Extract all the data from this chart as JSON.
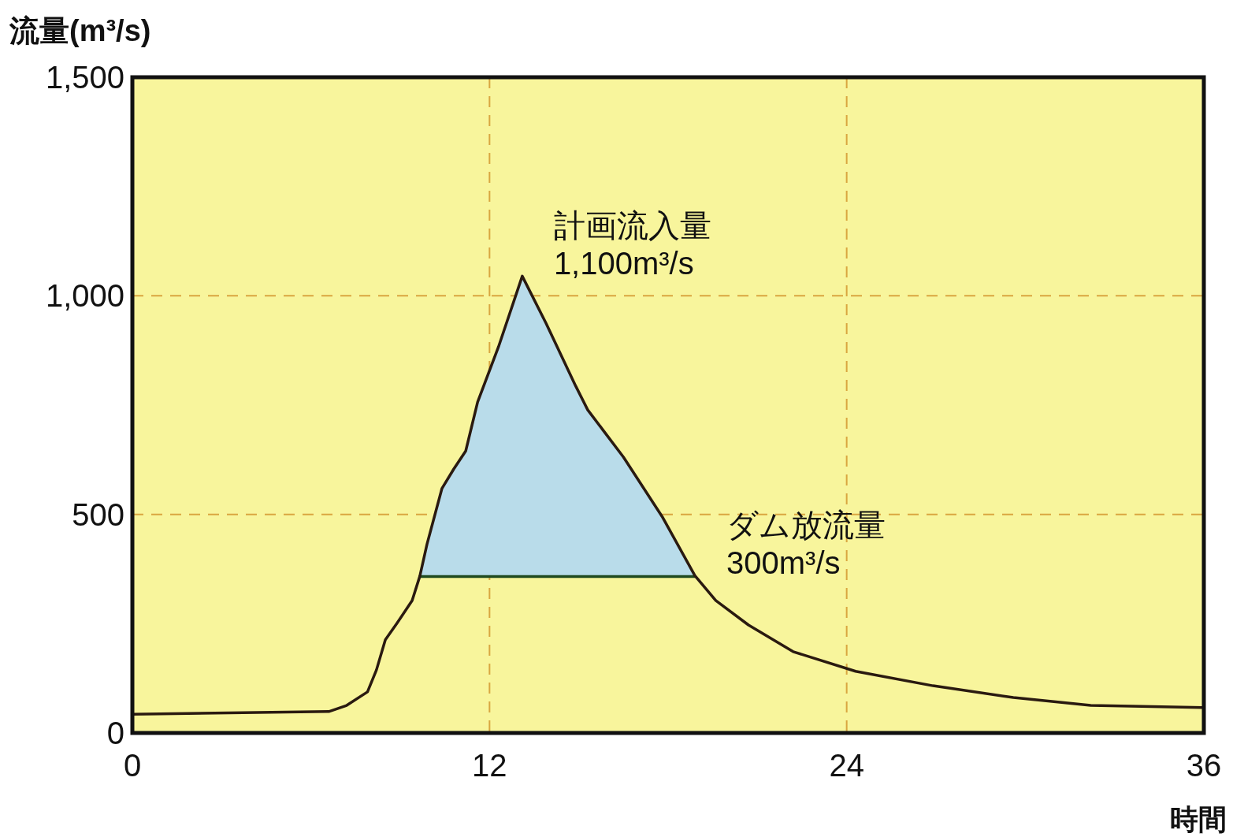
{
  "chart_data": {
    "type": "line",
    "xlabel": "時間",
    "ylabel": "流量(m³/s)",
    "xlim": [
      0,
      36
    ],
    "ylim": [
      0,
      1500
    ],
    "xticks": [
      0,
      12,
      24,
      36
    ],
    "yticks": [
      {
        "value": 0,
        "label": "0"
      },
      {
        "value": 500,
        "label": "500"
      },
      {
        "value": 1000,
        "label": "1,000"
      },
      {
        "value": 1500,
        "label": "1,500"
      }
    ],
    "grid": true,
    "series": [
      {
        "type": "area",
        "color": "#b9dcea",
        "x": [
          9.66,
          9.9,
          10.4,
          10.8,
          11.2,
          11.6,
          12.3,
          13.1,
          13.9,
          14.9,
          15.3,
          16.5,
          17.8,
          18.9
        ],
        "values": [
          359,
          432,
          559,
          604,
          645,
          757,
          883,
          1045,
          937,
          793,
          739,
          631,
          495,
          360
        ]
      },
      {
        "color": "#1f4a1f",
        "x": [
          9.66,
          18.9
        ],
        "values": [
          358,
          358
        ]
      },
      {
        "color": "#2a1a10",
        "x": [
          0,
          6.6,
          7.2,
          7.9,
          8.2,
          8.5,
          8.9,
          9.4,
          9.66,
          9.9,
          10.4,
          10.8,
          11.2,
          11.6,
          12.3,
          13.1,
          13.9,
          14.9,
          15.3,
          16.5,
          17.8,
          18.9,
          19.6,
          20.7,
          22.2,
          24.3,
          26.9,
          29.6,
          32.2,
          36
        ],
        "values": [
          43,
          49,
          63,
          94,
          144,
          213,
          252,
          303,
          359,
          432,
          559,
          604,
          645,
          757,
          883,
          1045,
          937,
          793,
          739,
          631,
          495,
          360,
          303,
          247,
          186,
          141,
          108,
          81,
          63,
          58
        ]
      }
    ],
    "annotations": [
      {
        "text": "計画流入量\n1,100m³/s",
        "x": 13.1,
        "y": 1045
      },
      {
        "text": "ダム放流量\n300m³/s",
        "x": 18.9,
        "y": 360
      }
    ]
  }
}
